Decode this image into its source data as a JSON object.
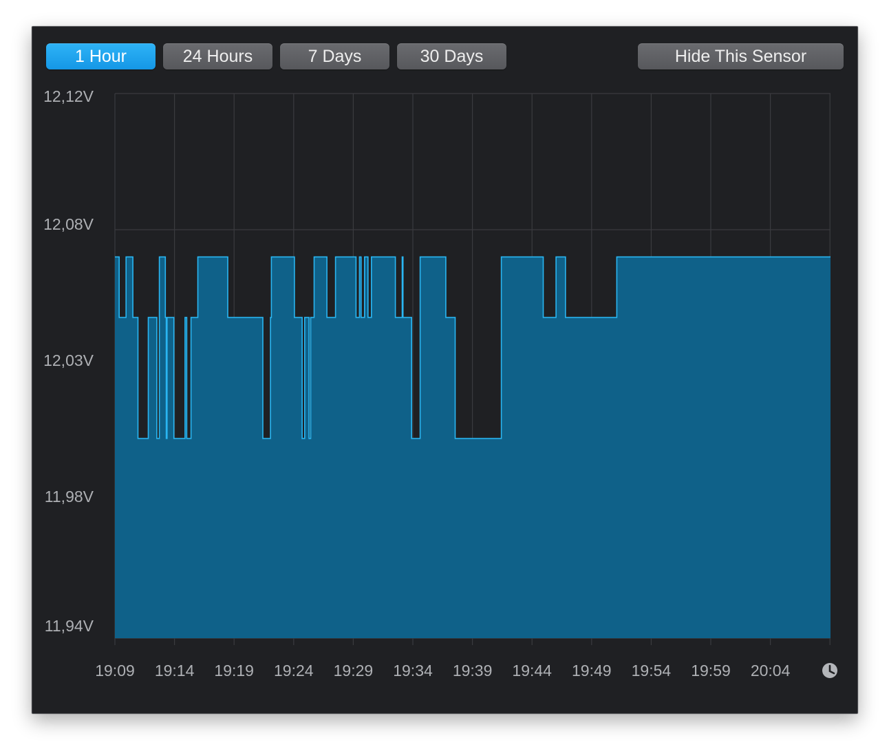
{
  "toolbar": {
    "buttons": [
      {
        "label": "1 Hour",
        "active": true
      },
      {
        "label": "24 Hours",
        "active": false
      },
      {
        "label": "7 Days",
        "active": false
      },
      {
        "label": "30 Days",
        "active": false
      }
    ],
    "hide_label": "Hide This Sensor"
  },
  "colors": {
    "line": "#2ab6f2",
    "fill": "#0f6189",
    "grid": "#3a3b3f",
    "background": "#1f2023",
    "active_button": "#1ea4ee",
    "button": "#616266"
  },
  "icons": {
    "time_axis": "clock-icon"
  },
  "chart_data": {
    "type": "area",
    "title": "",
    "xlabel": "",
    "ylabel": "",
    "y_unit": "V",
    "yticks": [
      "12,12V",
      "12,08V",
      "12,03V",
      "11,98V",
      "11,94V"
    ],
    "ytick_values": [
      12.12,
      12.08,
      12.03,
      11.98,
      11.94
    ],
    "xticks": [
      "19:09",
      "19:14",
      "19:19",
      "19:24",
      "19:29",
      "19:34",
      "19:39",
      "19:44",
      "19:49",
      "19:54",
      "19:59",
      "20:04"
    ],
    "x_range": [
      "19:09",
      "20:09"
    ],
    "ylim": [
      11.94,
      12.12
    ],
    "grid": true,
    "legend": "none",
    "levels": [
      12.066,
      12.046,
      12.006
    ],
    "series": [
      {
        "step_interval_minutes": 0.2,
        "values": "000001111111100000000111111222222222222111111111122200000001211111111222222222222211222221111111100000000000000000000000000000000000111111111111111111111111111111111111111112222222221000000000000000000000000000111111111222111112211110000000000000001111111111000000000000000000000000111100111100001111000000000000000000000000000011111111011111111112222222222000000000000000000000000000000111111111112222222222222222222222222222222222222222222222222222220000000000000000000000000000000000000000000000000111111111111111000000000001111111111111111111111111111111111111111111111111111111111110000000000000000000000000000000000000000000000000000000000000000000000000000000000000000000000000000000000000000000000000000000000000000000000000000000000000000000000000000000000000000000000000000000000000000000000000000000000000000000000000000000000"
      }
    ]
  }
}
